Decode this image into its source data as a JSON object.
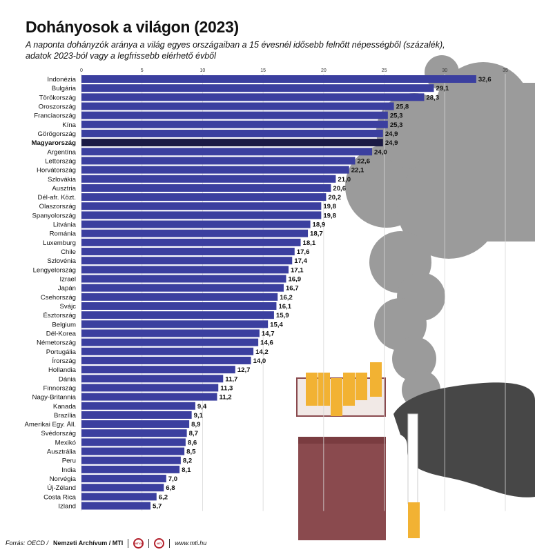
{
  "header": {
    "title": "Dohányosok a világon (2023)",
    "subtitle_line1": "A naponta dohányzók aránya a világ egyes országaiban a 15 évesnél idősebb felnőtt népességből (százalék),",
    "subtitle_line2": "adatok 2023-ból vagy a legfrissebb elérhető évből"
  },
  "colors": {
    "bar": "#3b3f9f",
    "highlight_bar": "#1b1a45",
    "smoke": "#9b9b9b",
    "smoke_dark": "#474747",
    "pack": "#8a4a4e",
    "filter": "#f2b233"
  },
  "chart_data": {
    "type": "bar",
    "orientation": "horizontal",
    "xlim": [
      0,
      35
    ],
    "xticks": [
      "0",
      "5",
      "10",
      "15",
      "20",
      "25",
      "30",
      "35"
    ],
    "highlight": "Magyarország",
    "categories": [
      "Indonézia",
      "Bulgária",
      "Törökország",
      "Oroszország",
      "Franciaország",
      "Kína",
      "Görögország",
      "Magyarország",
      "Argentína",
      "Lettország",
      "Horvátország",
      "Szlovákia",
      "Ausztria",
      "Dél-afr. Közt.",
      "Olaszország",
      "Spanyolország",
      "Litvánia",
      "Románia",
      "Luxemburg",
      "Chile",
      "Szlovénia",
      "Lengyelország",
      "Izrael",
      "Japán",
      "Csehország",
      "Svájc",
      "Észtország",
      "Belgium",
      "Dél-Korea",
      "Németország",
      "Portugália",
      "Írország",
      "Hollandia",
      "Dánia",
      "Finnország",
      "Nagy-Britannia",
      "Kanada",
      "Brazília",
      "Amerikai Egy. Áll.",
      "Svédország",
      "Mexikó",
      "Ausztrália",
      "Peru",
      "India",
      "Norvégia",
      "Új-Zéland",
      "Costa Rica",
      "Izland"
    ],
    "values": [
      32.6,
      29.1,
      28.3,
      25.8,
      25.3,
      25.3,
      24.9,
      24.9,
      24.0,
      22.6,
      22.1,
      21.0,
      20.6,
      20.2,
      19.8,
      19.8,
      18.9,
      18.7,
      18.1,
      17.6,
      17.4,
      17.1,
      16.9,
      16.7,
      16.2,
      16.1,
      15.9,
      15.4,
      14.7,
      14.6,
      14.2,
      14.0,
      12.7,
      11.7,
      11.3,
      11.2,
      9.4,
      9.1,
      8.9,
      8.7,
      8.6,
      8.5,
      8.2,
      8.1,
      7.0,
      6.8,
      6.2,
      5.7
    ],
    "labels": [
      "32,6",
      "29,1",
      "28,3",
      "25,8",
      "25,3",
      "25,3",
      "24,9",
      "24,9",
      "24,0",
      "22,6",
      "22,1",
      "21,0",
      "20,6",
      "20,2",
      "19,8",
      "19,8",
      "18,9",
      "18,7",
      "18,1",
      "17,6",
      "17,4",
      "17,1",
      "16,9",
      "16,7",
      "16,2",
      "16,1",
      "15,9",
      "15,4",
      "14,7",
      "14,6",
      "14,2",
      "14,0",
      "12,7",
      "11,7",
      "11,3",
      "11,2",
      "9,4",
      "9,1",
      "8,9",
      "8,7",
      "8,6",
      "8,5",
      "8,2",
      "8,1",
      "7,0",
      "6,8",
      "6,2",
      "5,7"
    ]
  },
  "footer": {
    "source": "Forrás: OECD /",
    "publisher": "Nemzeti Archívum / MTI",
    "logo1": "MTVA",
    "logo2": "MTI",
    "website": "www.mti.hu"
  }
}
